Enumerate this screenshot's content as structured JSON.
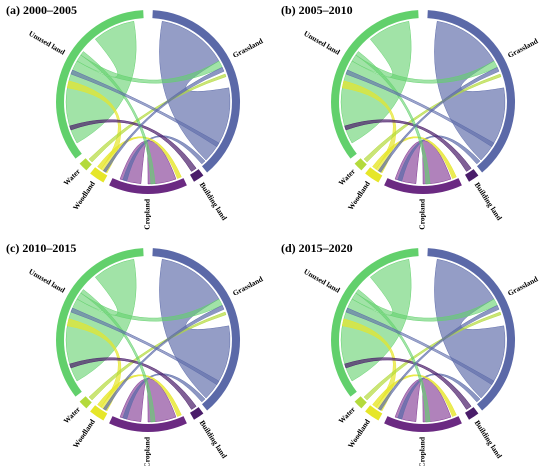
{
  "panels": [
    {
      "title": "(a) 2000–2005",
      "sectors": [
        "Grassland",
        "Building land",
        "Cropland",
        "Woodland",
        "Water",
        "Unused land"
      ]
    },
    {
      "title": "(b) 2005–2010",
      "sectors": [
        "Grassland",
        "Building land",
        "Cropland",
        "Woodland",
        "Water",
        "Unused land"
      ]
    },
    {
      "title": "(c) 2010–2015",
      "sectors": [
        "Grassland",
        "Building land",
        "Cropland",
        "Woodland",
        "Water",
        "Unused land"
      ]
    },
    {
      "title": "(d) 2015–2020",
      "sectors": [
        "Grassland",
        "Building land",
        "Cropland",
        "Woodland",
        "Water",
        "Unused land"
      ]
    }
  ]
}
